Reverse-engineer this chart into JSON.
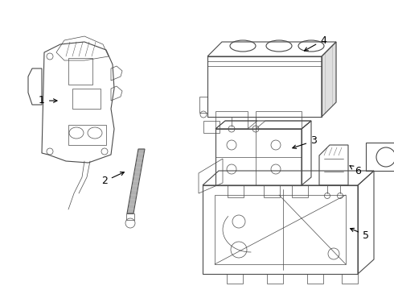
{
  "background_color": "#ffffff",
  "line_color": "#4a4a4a",
  "label_color": "#000000",
  "figsize": [
    4.9,
    3.6
  ],
  "dpi": 100,
  "label_fontsize": 9
}
